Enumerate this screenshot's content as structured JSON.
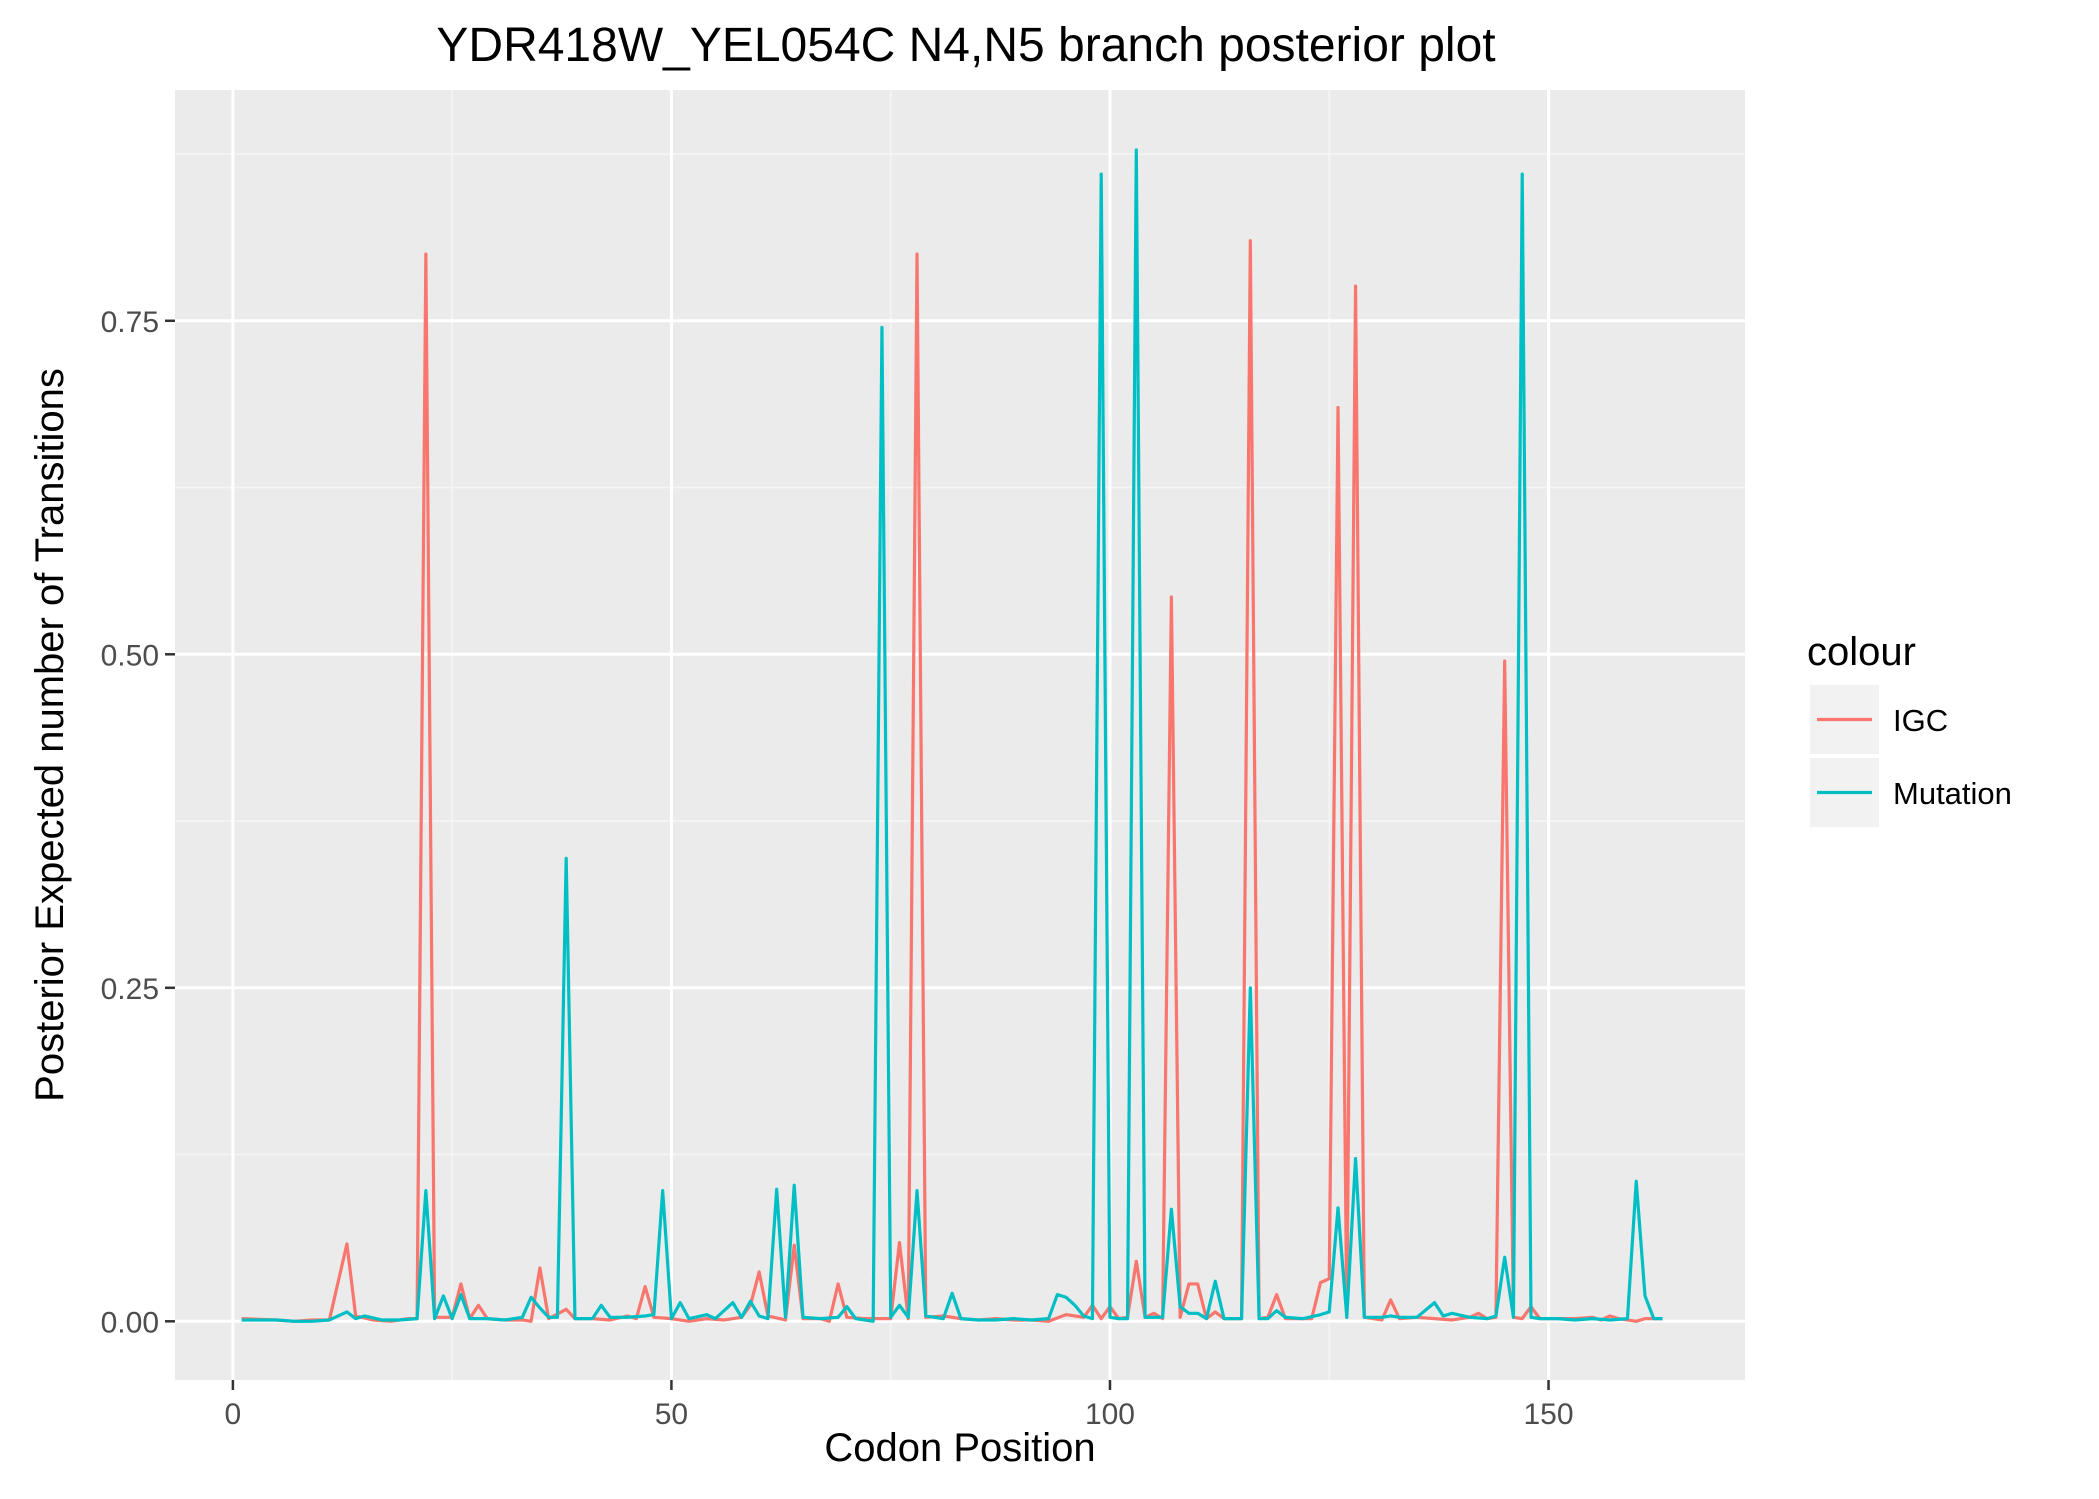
{
  "chart_data": {
    "type": "line",
    "title": "YDR418W_YEL054C N4,N5 branch posterior plot",
    "xlabel": "Codon Position",
    "ylabel": "Posterior Expected number of Transitions",
    "xlim": [
      -6.6,
      172.4
    ],
    "ylim": [
      -0.044,
      0.923
    ],
    "x_ticks": [
      0,
      50,
      100,
      150
    ],
    "x_tick_labels": [
      "0",
      "50",
      "100",
      "150"
    ],
    "y_ticks": [
      0,
      0.25,
      0.5,
      0.75
    ],
    "y_tick_labels": [
      "0.00",
      "0.25",
      "0.50",
      "0.75"
    ],
    "grid": true,
    "legend_title": "colour",
    "legend_position": "right",
    "series": [
      {
        "name": "IGC",
        "color": "#F8766D",
        "points": [
          [
            1,
            0.002
          ],
          [
            5,
            0.001
          ],
          [
            7,
            0.0
          ],
          [
            9,
            0.001
          ],
          [
            11,
            0.001
          ],
          [
            13,
            0.058
          ],
          [
            14,
            0.004
          ],
          [
            16,
            0.001
          ],
          [
            18,
            0.0
          ],
          [
            20,
            0.002
          ],
          [
            21,
            0.002
          ],
          [
            22,
            0.8
          ],
          [
            23,
            0.003
          ],
          [
            25,
            0.003
          ],
          [
            26,
            0.028
          ],
          [
            27,
            0.002
          ],
          [
            28,
            0.012
          ],
          [
            29,
            0.002
          ],
          [
            31,
            0.001
          ],
          [
            33,
            0.001
          ],
          [
            34,
            0.0
          ],
          [
            35,
            0.04
          ],
          [
            36,
            0.002
          ],
          [
            38,
            0.009
          ],
          [
            39,
            0.002
          ],
          [
            41,
            0.002
          ],
          [
            43,
            0.001
          ],
          [
            45,
            0.004
          ],
          [
            46,
            0.002
          ],
          [
            47,
            0.026
          ],
          [
            48,
            0.003
          ],
          [
            50,
            0.002
          ],
          [
            52,
            0.0
          ],
          [
            54,
            0.002
          ],
          [
            56,
            0.001
          ],
          [
            58,
            0.003
          ],
          [
            59,
            0.012
          ],
          [
            60,
            0.037
          ],
          [
            61,
            0.004
          ],
          [
            63,
            0.001
          ],
          [
            64,
            0.057
          ],
          [
            65,
            0.002
          ],
          [
            67,
            0.002
          ],
          [
            68,
            0.0
          ],
          [
            69,
            0.028
          ],
          [
            70,
            0.003
          ],
          [
            72,
            0.002
          ],
          [
            74,
            0.002
          ],
          [
            75,
            0.002
          ],
          [
            76,
            0.059
          ],
          [
            77,
            0.002
          ],
          [
            78,
            0.8
          ],
          [
            79,
            0.003
          ],
          [
            81,
            0.004
          ],
          [
            83,
            0.002
          ],
          [
            85,
            0.001
          ],
          [
            87,
            0.002
          ],
          [
            89,
            0.001
          ],
          [
            91,
            0.001
          ],
          [
            93,
            0.0
          ],
          [
            95,
            0.005
          ],
          [
            97,
            0.003
          ],
          [
            98,
            0.012
          ],
          [
            99,
            0.002
          ],
          [
            100,
            0.011
          ],
          [
            101,
            0.002
          ],
          [
            102,
            0.003
          ],
          [
            103,
            0.045
          ],
          [
            104,
            0.003
          ],
          [
            105,
            0.006
          ],
          [
            106,
            0.002
          ],
          [
            107,
            0.543
          ],
          [
            108,
            0.003
          ],
          [
            109,
            0.028
          ],
          [
            110,
            0.028
          ],
          [
            111,
            0.002
          ],
          [
            112,
            0.007
          ],
          [
            113,
            0.002
          ],
          [
            115,
            0.002
          ],
          [
            116,
            0.81
          ],
          [
            117,
            0.002
          ],
          [
            118,
            0.003
          ],
          [
            119,
            0.02
          ],
          [
            120,
            0.002
          ],
          [
            122,
            0.002
          ],
          [
            123,
            0.002
          ],
          [
            124,
            0.029
          ],
          [
            125,
            0.032
          ],
          [
            126,
            0.685
          ],
          [
            127,
            0.003
          ],
          [
            128,
            0.776
          ],
          [
            129,
            0.003
          ],
          [
            131,
            0.001
          ],
          [
            132,
            0.016
          ],
          [
            133,
            0.002
          ],
          [
            135,
            0.003
          ],
          [
            137,
            0.002
          ],
          [
            139,
            0.001
          ],
          [
            141,
            0.003
          ],
          [
            142,
            0.006
          ],
          [
            143,
            0.002
          ],
          [
            144,
            0.003
          ],
          [
            145,
            0.495
          ],
          [
            146,
            0.003
          ],
          [
            147,
            0.002
          ],
          [
            148,
            0.011
          ],
          [
            149,
            0.002
          ],
          [
            151,
            0.002
          ],
          [
            153,
            0.002
          ],
          [
            155,
            0.003
          ],
          [
            156,
            0.001
          ],
          [
            157,
            0.004
          ],
          [
            158,
            0.002
          ],
          [
            159,
            0.001
          ],
          [
            160,
            0.0
          ],
          [
            161,
            0.002
          ],
          [
            163,
            0.002
          ]
        ]
      },
      {
        "name": "Mutation",
        "color": "#00BFC4",
        "points": [
          [
            1,
            0.001
          ],
          [
            5,
            0.001
          ],
          [
            7,
            0.0
          ],
          [
            9,
            0.0
          ],
          [
            11,
            0.001
          ],
          [
            13,
            0.007
          ],
          [
            14,
            0.002
          ],
          [
            15,
            0.004
          ],
          [
            17,
            0.001
          ],
          [
            19,
            0.001
          ],
          [
            21,
            0.002
          ],
          [
            22,
            0.098
          ],
          [
            23,
            0.002
          ],
          [
            24,
            0.019
          ],
          [
            25,
            0.002
          ],
          [
            26,
            0.02
          ],
          [
            27,
            0.002
          ],
          [
            29,
            0.002
          ],
          [
            31,
            0.001
          ],
          [
            33,
            0.003
          ],
          [
            34,
            0.018
          ],
          [
            35,
            0.01
          ],
          [
            36,
            0.003
          ],
          [
            37,
            0.003
          ],
          [
            38,
            0.347
          ],
          [
            39,
            0.002
          ],
          [
            41,
            0.002
          ],
          [
            42,
            0.012
          ],
          [
            43,
            0.003
          ],
          [
            45,
            0.003
          ],
          [
            47,
            0.004
          ],
          [
            48,
            0.005
          ],
          [
            49,
            0.098
          ],
          [
            50,
            0.002
          ],
          [
            51,
            0.014
          ],
          [
            52,
            0.002
          ],
          [
            54,
            0.005
          ],
          [
            55,
            0.002
          ],
          [
            57,
            0.014
          ],
          [
            58,
            0.003
          ],
          [
            59,
            0.015
          ],
          [
            60,
            0.004
          ],
          [
            61,
            0.002
          ],
          [
            62,
            0.099
          ],
          [
            63,
            0.003
          ],
          [
            64,
            0.102
          ],
          [
            65,
            0.003
          ],
          [
            67,
            0.002
          ],
          [
            69,
            0.003
          ],
          [
            70,
            0.011
          ],
          [
            71,
            0.002
          ],
          [
            73,
            0.0
          ],
          [
            74,
            0.745
          ],
          [
            75,
            0.003
          ],
          [
            76,
            0.012
          ],
          [
            77,
            0.003
          ],
          [
            78,
            0.098
          ],
          [
            79,
            0.004
          ],
          [
            81,
            0.002
          ],
          [
            82,
            0.021
          ],
          [
            83,
            0.002
          ],
          [
            85,
            0.001
          ],
          [
            87,
            0.001
          ],
          [
            89,
            0.002
          ],
          [
            91,
            0.001
          ],
          [
            93,
            0.002
          ],
          [
            94,
            0.02
          ],
          [
            95,
            0.018
          ],
          [
            96,
            0.012
          ],
          [
            97,
            0.004
          ],
          [
            98,
            0.002
          ],
          [
            99,
            0.86
          ],
          [
            100,
            0.003
          ],
          [
            101,
            0.002
          ],
          [
            102,
            0.002
          ],
          [
            103,
            0.878
          ],
          [
            104,
            0.003
          ],
          [
            105,
            0.003
          ],
          [
            106,
            0.003
          ],
          [
            107,
            0.084
          ],
          [
            108,
            0.011
          ],
          [
            109,
            0.006
          ],
          [
            110,
            0.006
          ],
          [
            111,
            0.002
          ],
          [
            112,
            0.03
          ],
          [
            113,
            0.002
          ],
          [
            115,
            0.002
          ],
          [
            116,
            0.25
          ],
          [
            117,
            0.002
          ],
          [
            118,
            0.002
          ],
          [
            119,
            0.008
          ],
          [
            120,
            0.003
          ],
          [
            122,
            0.002
          ],
          [
            124,
            0.005
          ],
          [
            125,
            0.007
          ],
          [
            126,
            0.085
          ],
          [
            127,
            0.003
          ],
          [
            128,
            0.122
          ],
          [
            129,
            0.003
          ],
          [
            131,
            0.003
          ],
          [
            132,
            0.004
          ],
          [
            133,
            0.003
          ],
          [
            135,
            0.003
          ],
          [
            137,
            0.014
          ],
          [
            138,
            0.004
          ],
          [
            139,
            0.006
          ],
          [
            141,
            0.003
          ],
          [
            143,
            0.002
          ],
          [
            144,
            0.004
          ],
          [
            145,
            0.048
          ],
          [
            146,
            0.003
          ],
          [
            147,
            0.86
          ],
          [
            148,
            0.003
          ],
          [
            149,
            0.002
          ],
          [
            151,
            0.002
          ],
          [
            153,
            0.001
          ],
          [
            155,
            0.002
          ],
          [
            157,
            0.001
          ],
          [
            159,
            0.002
          ],
          [
            160,
            0.105
          ],
          [
            161,
            0.019
          ],
          [
            162,
            0.002
          ],
          [
            163,
            0.002
          ]
        ]
      }
    ]
  }
}
